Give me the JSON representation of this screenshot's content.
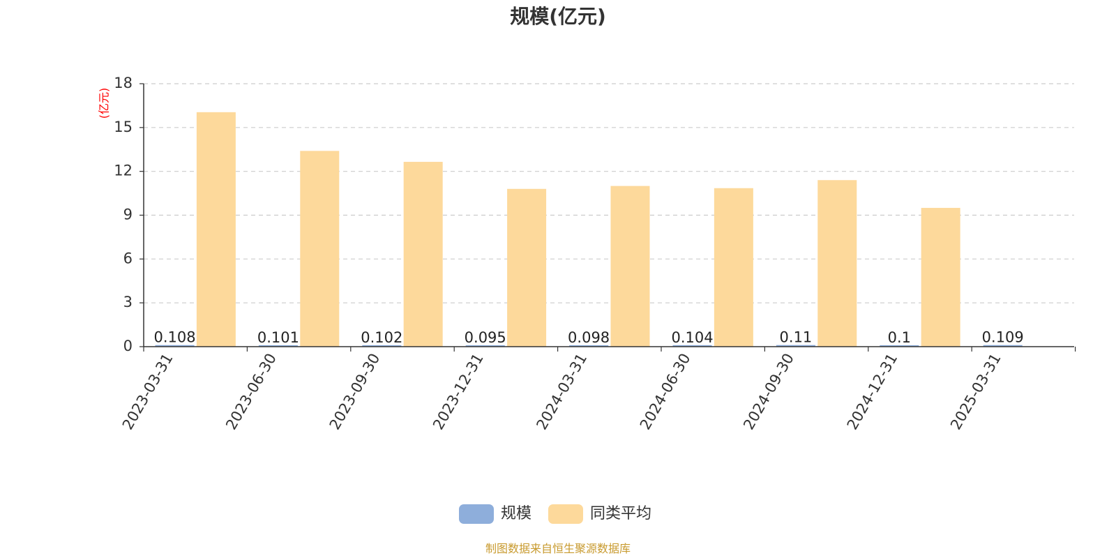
{
  "chart_data": {
    "type": "bar",
    "title": "规模(亿元)",
    "ylabel": "(亿元)",
    "xlabel": "",
    "categories": [
      "2023-03-31",
      "2023-06-30",
      "2023-09-30",
      "2023-12-31",
      "2024-03-31",
      "2024-06-30",
      "2024-09-30",
      "2024-12-31",
      "2025-03-31"
    ],
    "series": [
      {
        "name": "规模",
        "color": "#8eaedb",
        "values": [
          0.108,
          0.101,
          0.102,
          0.095,
          0.098,
          0.104,
          0.11,
          0.1,
          0.109
        ],
        "labels": [
          "0.108",
          "0.101",
          "0.102",
          "0.095",
          "0.098",
          "0.104",
          "0.11",
          "0.1",
          "0.109"
        ]
      },
      {
        "name": "同类平均",
        "color": "#fdd99b",
        "values": [
          16.05,
          13.4,
          12.65,
          10.8,
          11.0,
          10.85,
          11.4,
          9.5,
          null
        ]
      }
    ],
    "ylim": [
      0,
      18
    ],
    "yticks": [
      0,
      3,
      6,
      9,
      12,
      15,
      18
    ],
    "grid": true,
    "grid_style": "dashed",
    "legend": "bottom-center",
    "x_tick_rotation": -60
  },
  "source": "制图数据来自恒生聚源数据库"
}
